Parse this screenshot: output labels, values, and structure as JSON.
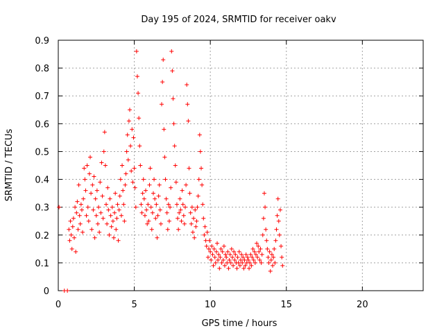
{
  "chart_data": {
    "type": "scatter",
    "title": "Day 195 of 2024, SRMTID for receiver oakv",
    "xlabel": "GPS time / hours",
    "ylabel": "SRMTID / TECUs",
    "xlim": [
      0,
      24
    ],
    "ylim": [
      0,
      0.9
    ],
    "xticks": [
      0,
      5,
      10,
      15,
      20
    ],
    "xtick_labels": [
      "0",
      "5",
      "10",
      "15",
      "20"
    ],
    "yticks": [
      0,
      0.1,
      0.2,
      0.3,
      0.4,
      0.5,
      0.6,
      0.7,
      0.8,
      0.9
    ],
    "ytick_labels": [
      "0",
      "0.1",
      "0.2",
      "0.3",
      "0.4",
      "0.5",
      "0.6",
      "0.7",
      "0.8",
      "0.9"
    ],
    "grid": true,
    "marker": "+",
    "color": "#ff0000",
    "series": [
      {
        "name": "SRMTID",
        "x": [
          0.05,
          0.4,
          0.6,
          0.7,
          0.75,
          0.8,
          0.85,
          0.9,
          0.95,
          1.0,
          1.05,
          1.1,
          1.15,
          1.2,
          1.25,
          1.3,
          1.35,
          1.4,
          1.45,
          1.5,
          1.55,
          1.6,
          1.65,
          1.7,
          1.75,
          1.8,
          1.85,
          1.9,
          1.95,
          2.0,
          2.05,
          2.1,
          2.15,
          2.2,
          2.25,
          2.3,
          2.35,
          2.4,
          2.45,
          2.5,
          2.55,
          2.6,
          2.65,
          2.7,
          2.75,
          2.8,
          2.85,
          2.9,
          2.95,
          3.0,
          3.05,
          3.1,
          3.15,
          3.2,
          3.25,
          3.3,
          3.35,
          3.4,
          3.45,
          3.5,
          3.55,
          3.6,
          3.65,
          3.7,
          3.75,
          3.8,
          3.85,
          3.9,
          3.95,
          4.0,
          4.05,
          4.1,
          4.15,
          4.2,
          4.25,
          4.3,
          4.35,
          4.4,
          4.45,
          4.5,
          4.55,
          4.6,
          4.65,
          4.7,
          4.75,
          4.8,
          4.85,
          4.9,
          4.95,
          5.0,
          5.05,
          5.1,
          5.15,
          5.2,
          5.25,
          5.3,
          5.35,
          5.4,
          5.45,
          5.5,
          5.55,
          5.6,
          5.65,
          5.7,
          5.75,
          5.8,
          5.85,
          5.9,
          5.95,
          6.0,
          6.05,
          6.1,
          6.15,
          6.2,
          6.25,
          6.3,
          6.35,
          6.4,
          6.45,
          6.5,
          6.55,
          6.6,
          6.65,
          6.7,
          6.75,
          6.8,
          6.85,
          6.9,
          6.95,
          7.0,
          7.05,
          7.1,
          7.15,
          7.2,
          7.25,
          7.3,
          7.35,
          7.4,
          7.45,
          7.5,
          7.55,
          7.6,
          7.65,
          7.7,
          7.75,
          7.8,
          7.85,
          7.9,
          7.95,
          8.0,
          8.05,
          8.1,
          8.15,
          8.2,
          8.25,
          8.3,
          8.35,
          8.4,
          8.45,
          8.5,
          8.55,
          8.6,
          8.65,
          8.7,
          8.75,
          8.8,
          8.85,
          8.9,
          8.95,
          9.0,
          9.05,
          9.1,
          9.15,
          9.2,
          9.25,
          9.3,
          9.35,
          9.4,
          9.45,
          9.5,
          9.55,
          9.6,
          9.65,
          9.7,
          9.75,
          9.8,
          9.85,
          9.9,
          9.95,
          10.0,
          10.05,
          10.1,
          10.15,
          10.2,
          10.25,
          10.3,
          10.35,
          10.4,
          10.45,
          10.5,
          10.55,
          10.6,
          10.65,
          10.7,
          10.75,
          10.8,
          10.85,
          10.9,
          10.95,
          11.0,
          11.05,
          11.1,
          11.15,
          11.2,
          11.25,
          11.3,
          11.35,
          11.4,
          11.45,
          11.5,
          11.55,
          11.6,
          11.65,
          11.7,
          11.75,
          11.8,
          11.85,
          11.9,
          11.95,
          12.0,
          12.05,
          12.1,
          12.15,
          12.2,
          12.25,
          12.3,
          12.35,
          12.4,
          12.45,
          12.5,
          12.55,
          12.6,
          12.65,
          12.7,
          12.75,
          12.8,
          12.85,
          12.9,
          12.95,
          13.0,
          13.05,
          13.1,
          13.15,
          13.2,
          13.25,
          13.3,
          13.35,
          13.4,
          13.45,
          13.5,
          13.55,
          13.6,
          13.65,
          13.7,
          13.75,
          13.8,
          13.85,
          13.9,
          13.95,
          14.0,
          14.05,
          14.1,
          14.15,
          14.2,
          14.25,
          14.3,
          14.35,
          14.4,
          14.45,
          14.5,
          14.55,
          14.6,
          14.65,
          14.7,
          14.75
        ],
        "y": [
          0.3,
          0.0,
          0.0,
          0.22,
          0.18,
          0.25,
          0.2,
          0.15,
          0.23,
          0.26,
          0.19,
          0.3,
          0.14,
          0.28,
          0.32,
          0.22,
          0.38,
          0.27,
          0.24,
          0.31,
          0.29,
          0.21,
          0.33,
          0.44,
          0.4,
          0.36,
          0.27,
          0.45,
          0.3,
          0.25,
          0.42,
          0.48,
          0.35,
          0.22,
          0.38,
          0.29,
          0.41,
          0.19,
          0.33,
          0.27,
          0.36,
          0.24,
          0.3,
          0.21,
          0.39,
          0.28,
          0.46,
          0.34,
          0.26,
          0.5,
          0.57,
          0.45,
          0.31,
          0.24,
          0.37,
          0.29,
          0.2,
          0.33,
          0.27,
          0.23,
          0.3,
          0.25,
          0.19,
          0.28,
          0.35,
          0.22,
          0.26,
          0.31,
          0.18,
          0.29,
          0.34,
          0.4,
          0.27,
          0.45,
          0.36,
          0.31,
          0.25,
          0.38,
          0.42,
          0.5,
          0.56,
          0.47,
          0.61,
          0.65,
          0.52,
          0.43,
          0.58,
          0.39,
          0.55,
          0.44,
          0.37,
          0.3,
          0.86,
          0.77,
          0.71,
          0.62,
          0.52,
          0.45,
          0.31,
          0.28,
          0.35,
          0.4,
          0.33,
          0.27,
          0.36,
          0.29,
          0.24,
          0.31,
          0.25,
          0.38,
          0.44,
          0.3,
          0.22,
          0.28,
          0.35,
          0.4,
          0.33,
          0.26,
          0.31,
          0.19,
          0.27,
          0.34,
          0.38,
          0.29,
          0.24,
          0.67,
          0.75,
          0.83,
          0.58,
          0.48,
          0.4,
          0.33,
          0.28,
          0.22,
          0.31,
          0.25,
          0.3,
          0.37,
          0.86,
          0.79,
          0.69,
          0.6,
          0.52,
          0.45,
          0.39,
          0.31,
          0.26,
          0.22,
          0.28,
          0.33,
          0.29,
          0.25,
          0.36,
          0.31,
          0.27,
          0.24,
          0.3,
          0.38,
          0.74,
          0.67,
          0.61,
          0.44,
          0.35,
          0.28,
          0.24,
          0.3,
          0.21,
          0.26,
          0.19,
          0.29,
          0.23,
          0.25,
          0.3,
          0.34,
          0.4,
          0.56,
          0.5,
          0.44,
          0.38,
          0.31,
          0.26,
          0.2,
          0.23,
          0.18,
          0.16,
          0.21,
          0.12,
          0.15,
          0.18,
          0.14,
          0.11,
          0.16,
          0.13,
          0.09,
          0.15,
          0.12,
          0.1,
          0.14,
          0.17,
          0.11,
          0.13,
          0.08,
          0.12,
          0.15,
          0.1,
          0.14,
          0.11,
          0.16,
          0.09,
          0.13,
          0.12,
          0.1,
          0.14,
          0.08,
          0.11,
          0.13,
          0.1,
          0.15,
          0.12,
          0.09,
          0.14,
          0.11,
          0.13,
          0.1,
          0.08,
          0.12,
          0.1,
          0.14,
          0.09,
          0.11,
          0.13,
          0.1,
          0.12,
          0.08,
          0.11,
          0.09,
          0.13,
          0.1,
          0.12,
          0.11,
          0.08,
          0.1,
          0.13,
          0.09,
          0.12,
          0.15,
          0.11,
          0.14,
          0.1,
          0.13,
          0.17,
          0.12,
          0.16,
          0.14,
          0.11,
          0.15,
          0.1,
          0.13,
          0.2,
          0.26,
          0.35,
          0.3,
          0.22,
          0.18,
          0.15,
          0.12,
          0.1,
          0.14,
          0.07,
          0.11,
          0.13,
          0.09,
          0.12,
          0.15,
          0.1,
          0.18,
          0.22,
          0.27,
          0.33,
          0.25,
          0.2,
          0.29,
          0.16,
          0.12,
          0.09
        ]
      }
    ]
  }
}
